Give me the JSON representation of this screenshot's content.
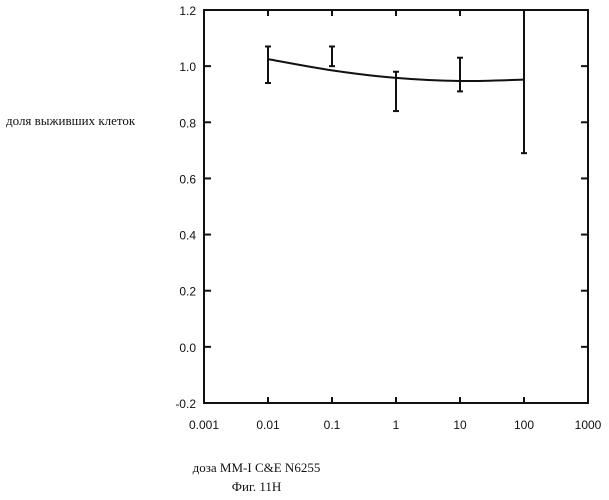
{
  "chart_data": {
    "type": "line",
    "title": "",
    "ylabel": "доля выживших клеток",
    "xlabel": "доза MM-I   C&E N6255",
    "caption": "Фиг. 11H",
    "x_scale": "log",
    "xlim": [
      0.001,
      1000
    ],
    "ylim": [
      -0.2,
      1.2
    ],
    "x_tick_labels": [
      "0.001",
      "0.01",
      "0.1",
      "1",
      "10",
      "100",
      "1000"
    ],
    "x_ticks": [
      0.001,
      0.01,
      0.1,
      1,
      10,
      100,
      1000
    ],
    "y_tick_labels": [
      "-0.2",
      "0.0",
      "0.2",
      "0.4",
      "0.6",
      "0.8",
      "1.0",
      "1.2"
    ],
    "y_ticks": [
      -0.2,
      0.0,
      0.2,
      0.4,
      0.6,
      0.8,
      1.0,
      1.2
    ],
    "grid": false,
    "series": [
      {
        "type": "errorbar",
        "points": [
          {
            "x": 0.01,
            "y": 1.01,
            "low": 0.94,
            "high": 1.07
          },
          {
            "x": 0.1,
            "y": 1.04,
            "low": 1.0,
            "high": 1.07
          },
          {
            "x": 1,
            "y": 0.91,
            "low": 0.84,
            "high": 0.98
          },
          {
            "x": 10,
            "y": 0.97,
            "low": 0.91,
            "high": 1.03
          },
          {
            "x": 100,
            "y": 0.95,
            "low": 0.69,
            "high": 1.2
          }
        ]
      },
      {
        "type": "line",
        "points": [
          {
            "x": 0.01,
            "y": 1.025
          },
          {
            "x": 0.1,
            "y": 0.985
          },
          {
            "x": 1,
            "y": 0.958
          },
          {
            "x": 10,
            "y": 0.947
          },
          {
            "x": 100,
            "y": 0.952
          }
        ]
      }
    ]
  }
}
